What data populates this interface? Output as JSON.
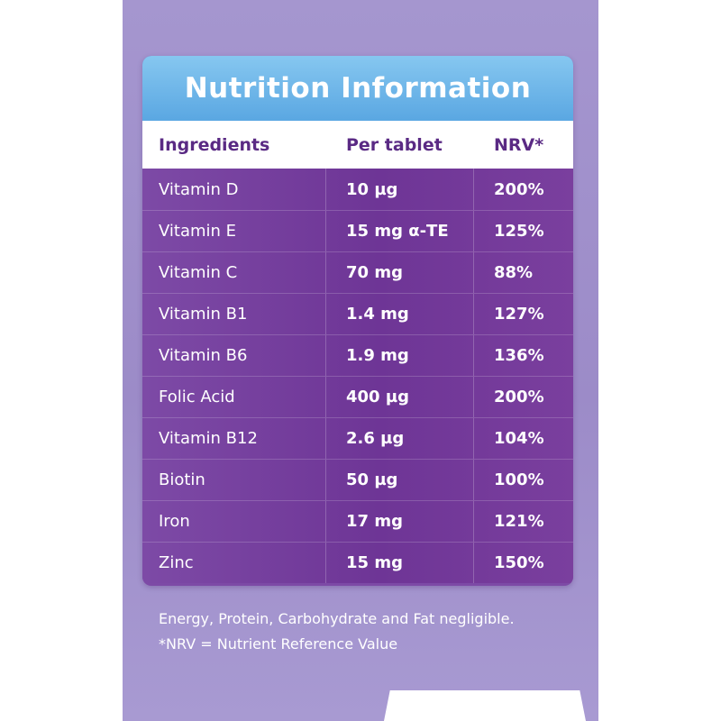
{
  "title": "Nutrition Information",
  "headers": {
    "ingredient": "Ingredients",
    "per_tablet": "Per tablet",
    "nrv": "NRV*"
  },
  "rows": [
    {
      "ingredient": "Vitamin D",
      "per_tablet": "10 µg",
      "nrv": "200%"
    },
    {
      "ingredient": "Vitamin E",
      "per_tablet": "15 mg α-TE",
      "nrv": "125%"
    },
    {
      "ingredient": "Vitamin C",
      "per_tablet": "70 mg",
      "nrv": "88%"
    },
    {
      "ingredient": "Vitamin B1",
      "per_tablet": "1.4 mg",
      "nrv": "127%"
    },
    {
      "ingredient": "Vitamin B6",
      "per_tablet": "1.9 mg",
      "nrv": "136%"
    },
    {
      "ingredient": "Folic Acid",
      "per_tablet": "400 µg",
      "nrv": "200%"
    },
    {
      "ingredient": "Vitamin B12",
      "per_tablet": "2.6 µg",
      "nrv": "104%"
    },
    {
      "ingredient": "Biotin",
      "per_tablet": "50 µg",
      "nrv": "100%"
    },
    {
      "ingredient": "Iron",
      "per_tablet": "17 mg",
      "nrv": "121%"
    },
    {
      "ingredient": "Zinc",
      "per_tablet": "15 mg",
      "nrv": "150%"
    }
  ],
  "footnotes": {
    "line1": "Energy, Protein, Carbohydrate and Fat negligible.",
    "line2": "*NRV = Nutrient Reference Value"
  },
  "colors": {
    "card_background": "#a596cf",
    "title_bar": "#5aa7e2",
    "header_text": "#5a2a84",
    "table_body": "#7d4aa6"
  }
}
